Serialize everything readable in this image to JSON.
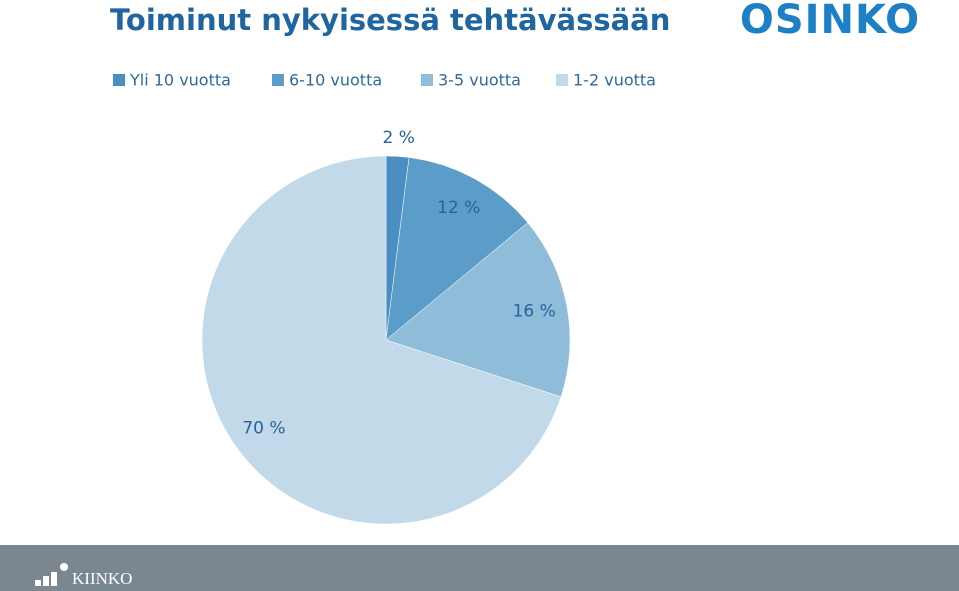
{
  "chart_data": {
    "type": "pie",
    "title": "Toiminut nykyisessä tehtävässään",
    "categories": [
      "Yli 10 vuotta",
      "6-10 vuotta",
      "3-5 vuotta",
      "1-2 vuotta"
    ],
    "values": [
      2,
      12,
      16,
      70
    ],
    "value_labels": [
      "2 %",
      "12 %",
      "16 %",
      "70 %"
    ],
    "colors": [
      "#4a8ec2",
      "#5b9cc9",
      "#8fbcd9",
      "#c2d9e9"
    ],
    "legend": "top"
  },
  "logo": "OSINKO",
  "footer_logo": "KIINKO"
}
